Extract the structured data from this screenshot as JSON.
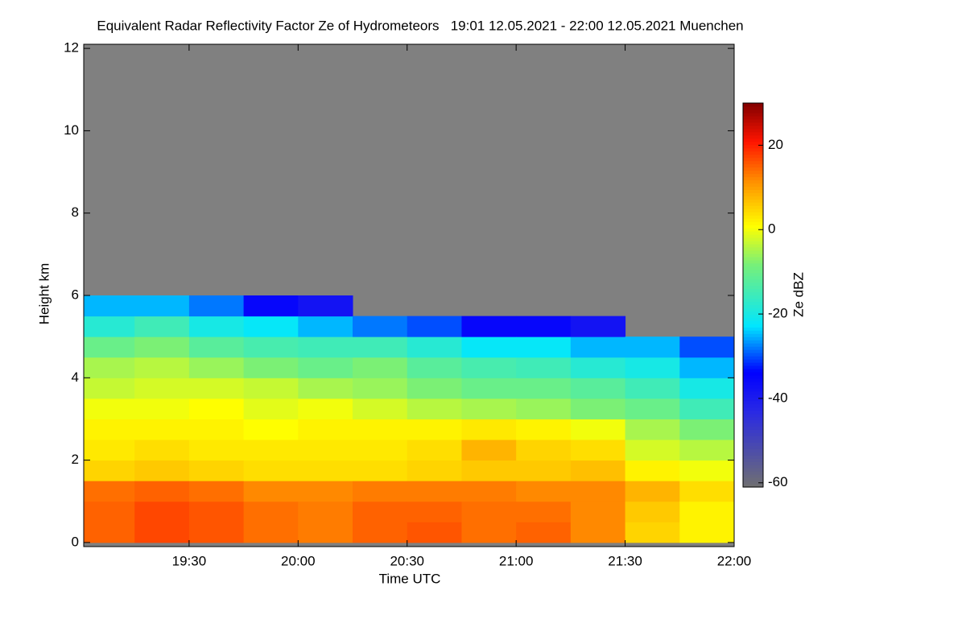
{
  "chart_data": {
    "type": "heatmap",
    "title": "Equivalent Radar Reflectivity Factor Ze of Hydrometeors   19:01 12.05.2021 - 22:00 12.05.2021 Muenchen",
    "xlabel": "Time UTC",
    "ylabel": "Height km",
    "colorbar_label": "Ze dBZ",
    "x": [
      19.125,
      19.375,
      19.625,
      19.875,
      20.125,
      20.375,
      20.625,
      20.875,
      21.125,
      21.375,
      21.625,
      21.875
    ],
    "y": [
      0.25,
      0.75,
      1.25,
      1.75,
      2.25,
      2.75,
      3.25,
      3.75,
      4.25,
      4.75,
      5.25,
      5.75,
      6.25
    ],
    "z": [
      [
        15,
        15,
        14,
        5,
        3,
        2,
        0,
        -3,
        -5,
        -10,
        -18,
        -25,
        null
      ],
      [
        17,
        17,
        15,
        6,
        4,
        2,
        0,
        -2,
        -4,
        -8,
        -15,
        -25,
        null
      ],
      [
        16,
        16,
        14,
        5,
        3,
        2,
        1,
        -2,
        -6,
        -12,
        -20,
        -28,
        null
      ],
      [
        14,
        14,
        12,
        4,
        3,
        1,
        -1,
        -3,
        -8,
        -14,
        -22,
        -35,
        null
      ],
      [
        13,
        13,
        12,
        4,
        3,
        2,
        0,
        -5,
        -10,
        -15,
        -25,
        -38,
        null
      ],
      [
        15,
        15,
        13,
        4,
        3,
        2,
        -2,
        -6,
        -8,
        -15,
        -28,
        null,
        null
      ],
      [
        16,
        15,
        13,
        5,
        4,
        2,
        -4,
        -8,
        -12,
        -18,
        -30,
        null,
        null
      ],
      [
        14,
        14,
        13,
        6,
        8,
        3,
        -5,
        -10,
        -14,
        -22,
        -35,
        null,
        null
      ],
      [
        15,
        14,
        12,
        6,
        5,
        2,
        -6,
        -10,
        -15,
        -22,
        -35,
        null,
        null
      ],
      [
        12,
        12,
        12,
        7,
        4,
        0,
        -8,
        -12,
        -18,
        -25,
        -38,
        null,
        null
      ],
      [
        5,
        6,
        8,
        2,
        -2,
        -5,
        -10,
        -15,
        -20,
        -25,
        null,
        null,
        null
      ],
      [
        2,
        2,
        4,
        0,
        -4,
        -8,
        -15,
        -20,
        -25,
        -30,
        null,
        null,
        null
      ]
    ],
    "xlim": [
      19.0167,
      22.0
    ],
    "xticks": [
      {
        "value": 19.5,
        "label": "19:30"
      },
      {
        "value": 20.0,
        "label": "20:00"
      },
      {
        "value": 20.5,
        "label": "20:30"
      },
      {
        "value": 21.0,
        "label": "21:00"
      },
      {
        "value": 21.5,
        "label": "21:30"
      },
      {
        "value": 22.0,
        "label": "22:00"
      }
    ],
    "ylim": [
      -0.1,
      12.1
    ],
    "yticks": [
      0,
      2,
      4,
      6,
      8,
      10,
      12
    ],
    "zlim": [
      -61,
      30
    ],
    "zticks": [
      -60,
      -40,
      -20,
      0,
      20
    ]
  }
}
